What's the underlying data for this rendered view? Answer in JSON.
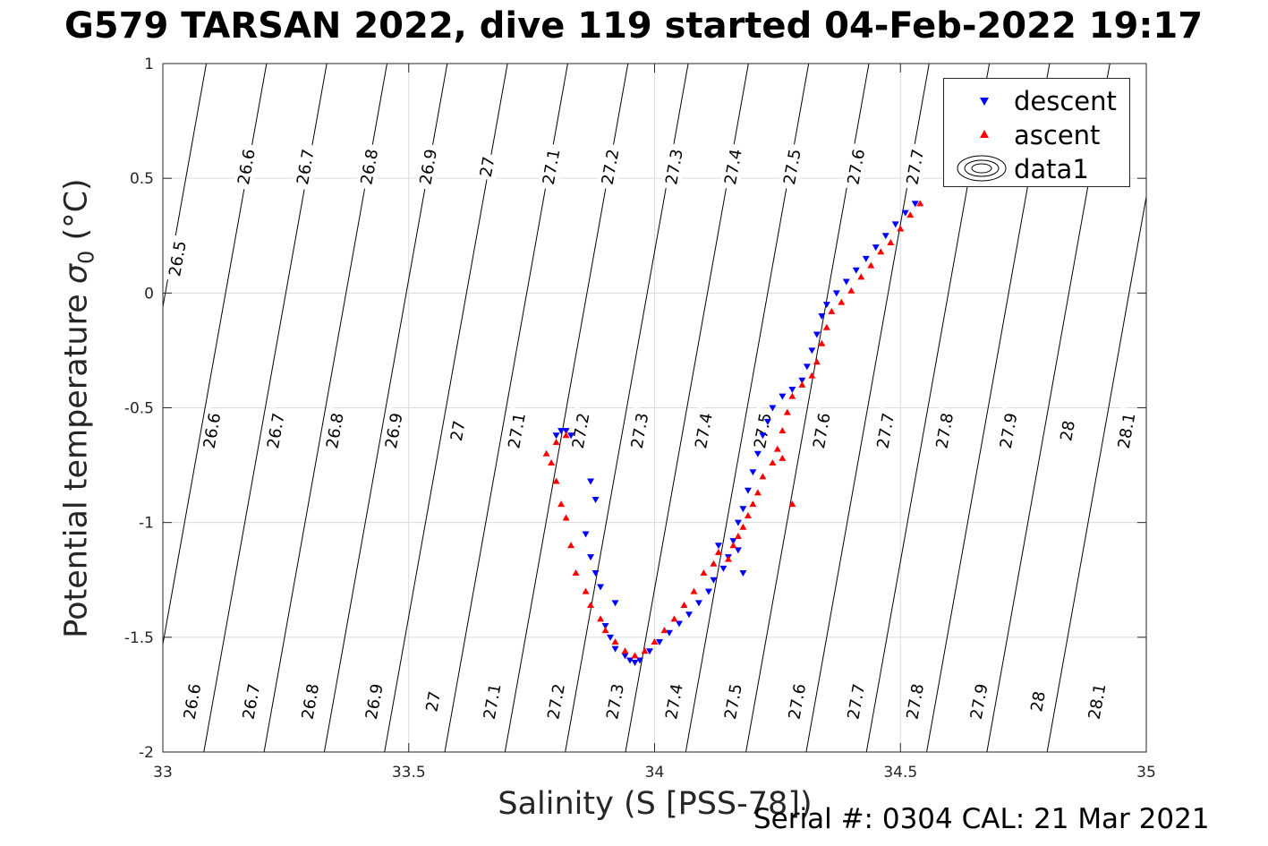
{
  "title": "G579 TARSAN 2022, dive 119 started 04-Feb-2022 19:17",
  "footer": "Serial #: 0304  CAL: 21 Mar 2021",
  "legend": {
    "descent": "descent",
    "ascent": "ascent",
    "data1": "data1"
  },
  "colors": {
    "descent": "#0000ff",
    "ascent": "#ff0000",
    "contour": "#000000",
    "grid": "#dcdcdc",
    "axis": "#262626"
  },
  "chart_data": {
    "type": "scatter",
    "title": "G579 TARSAN 2022, dive 119 started 04-Feb-2022 19:17",
    "xlabel": "Salinity (S [PSS-78])",
    "ylabel": {
      "text": "Potential temperature ",
      "symbol": "σ",
      "sub": "0",
      "unit": " (°C)"
    },
    "xlim": [
      33,
      35
    ],
    "ylim": [
      -2,
      1
    ],
    "xticks": [
      "33",
      "33.5",
      "34",
      "34.5",
      "35"
    ],
    "yticks": [
      "-2",
      "-1.5",
      "-1",
      "-0.5",
      "0",
      "0.5",
      "1"
    ],
    "grid": true,
    "legend_position": "top-right",
    "density_contours": {
      "levels": [
        26.5,
        26.6,
        26.7,
        26.8,
        26.9,
        27,
        27.1,
        27.2,
        27.3,
        27.4,
        27.5,
        27.6,
        27.7,
        27.8,
        27.9,
        28,
        28.1
      ],
      "labels": [
        {
          "text": "26.5",
          "s": 33.03,
          "t": 0.15
        },
        {
          "text": "26.6",
          "s": 33.17,
          "t": 0.55
        },
        {
          "text": "26.7",
          "s": 33.29,
          "t": 0.55
        },
        {
          "text": "26.8",
          "s": 33.42,
          "t": 0.55
        },
        {
          "text": "26.9",
          "s": 33.54,
          "t": 0.55
        },
        {
          "text": "27",
          "s": 33.66,
          "t": 0.55
        },
        {
          "text": "27.1",
          "s": 33.79,
          "t": 0.55
        },
        {
          "text": "27.2",
          "s": 33.91,
          "t": 0.55
        },
        {
          "text": "27.3",
          "s": 34.04,
          "t": 0.55
        },
        {
          "text": "27.4",
          "s": 34.16,
          "t": 0.55
        },
        {
          "text": "27.5",
          "s": 34.28,
          "t": 0.55
        },
        {
          "text": "27.6",
          "s": 34.41,
          "t": 0.55
        },
        {
          "text": "27.7",
          "s": 34.53,
          "t": 0.55
        },
        {
          "text": "26.6",
          "s": 33.1,
          "t": -0.6
        },
        {
          "text": "26.7",
          "s": 33.23,
          "t": -0.6
        },
        {
          "text": "26.8",
          "s": 33.35,
          "t": -0.6
        },
        {
          "text": "26.9",
          "s": 33.47,
          "t": -0.6
        },
        {
          "text": "27",
          "s": 33.6,
          "t": -0.6
        },
        {
          "text": "27.1",
          "s": 33.72,
          "t": -0.6
        },
        {
          "text": "27.2",
          "s": 33.85,
          "t": -0.6
        },
        {
          "text": "27.3",
          "s": 33.97,
          "t": -0.6
        },
        {
          "text": "27.4",
          "s": 34.1,
          "t": -0.6
        },
        {
          "text": "27.5",
          "s": 34.22,
          "t": -0.6
        },
        {
          "text": "27.6",
          "s": 34.34,
          "t": -0.6
        },
        {
          "text": "27.7",
          "s": 34.47,
          "t": -0.6
        },
        {
          "text": "27.8",
          "s": 34.59,
          "t": -0.6
        },
        {
          "text": "27.9",
          "s": 34.72,
          "t": -0.6
        },
        {
          "text": "28",
          "s": 34.84,
          "t": -0.6
        },
        {
          "text": "28.1",
          "s": 34.96,
          "t": -0.6
        },
        {
          "text": "26.6",
          "s": 33.06,
          "t": -1.78
        },
        {
          "text": "26.7",
          "s": 33.18,
          "t": -1.78
        },
        {
          "text": "26.8",
          "s": 33.3,
          "t": -1.78
        },
        {
          "text": "26.9",
          "s": 33.43,
          "t": -1.78
        },
        {
          "text": "27",
          "s": 33.55,
          "t": -1.78
        },
        {
          "text": "27.1",
          "s": 33.67,
          "t": -1.78
        },
        {
          "text": "27.2",
          "s": 33.8,
          "t": -1.78
        },
        {
          "text": "27.3",
          "s": 33.92,
          "t": -1.78
        },
        {
          "text": "27.4",
          "s": 34.04,
          "t": -1.78
        },
        {
          "text": "27.5",
          "s": 34.16,
          "t": -1.78
        },
        {
          "text": "27.6",
          "s": 34.29,
          "t": -1.78
        },
        {
          "text": "27.7",
          "s": 34.41,
          "t": -1.78
        },
        {
          "text": "27.8",
          "s": 34.53,
          "t": -1.78
        },
        {
          "text": "27.9",
          "s": 34.66,
          "t": -1.78
        },
        {
          "text": "28",
          "s": 34.78,
          "t": -1.78
        },
        {
          "text": "28.1",
          "s": 34.9,
          "t": -1.78
        }
      ]
    },
    "series": [
      {
        "name": "descent",
        "marker": "triangle-down",
        "color": "#0000ff",
        "points": [
          [
            34.53,
            0.39
          ],
          [
            34.51,
            0.35
          ],
          [
            34.49,
            0.3
          ],
          [
            34.47,
            0.25
          ],
          [
            34.45,
            0.2
          ],
          [
            34.43,
            0.15
          ],
          [
            34.41,
            0.1
          ],
          [
            34.39,
            0.05
          ],
          [
            34.37,
            0.0
          ],
          [
            34.35,
            -0.05
          ],
          [
            34.34,
            -0.1
          ],
          [
            34.33,
            -0.18
          ],
          [
            34.32,
            -0.25
          ],
          [
            34.31,
            -0.32
          ],
          [
            34.3,
            -0.38
          ],
          [
            34.28,
            -0.42
          ],
          [
            34.26,
            -0.45
          ],
          [
            34.24,
            -0.5
          ],
          [
            34.23,
            -0.56
          ],
          [
            34.22,
            -0.62
          ],
          [
            34.21,
            -0.7
          ],
          [
            34.2,
            -0.78
          ],
          [
            34.19,
            -0.86
          ],
          [
            34.18,
            -0.94
          ],
          [
            34.17,
            -1.0
          ],
          [
            34.16,
            -1.08
          ],
          [
            34.15,
            -1.15
          ],
          [
            34.14,
            -1.2
          ],
          [
            34.12,
            -1.25
          ],
          [
            34.18,
            -1.22
          ],
          [
            34.17,
            -1.12
          ],
          [
            34.13,
            -1.1
          ],
          [
            34.11,
            -1.3
          ],
          [
            34.09,
            -1.35
          ],
          [
            34.07,
            -1.4
          ],
          [
            34.05,
            -1.44
          ],
          [
            34.03,
            -1.48
          ],
          [
            34.01,
            -1.52
          ],
          [
            33.99,
            -1.56
          ],
          [
            33.97,
            -1.6
          ],
          [
            33.96,
            -1.61
          ],
          [
            33.95,
            -1.6
          ],
          [
            33.94,
            -1.58
          ],
          [
            33.92,
            -1.55
          ],
          [
            33.91,
            -1.5
          ],
          [
            33.92,
            -1.35
          ],
          [
            33.9,
            -1.45
          ],
          [
            33.89,
            -1.28
          ],
          [
            33.88,
            -1.22
          ],
          [
            33.87,
            -1.15
          ],
          [
            33.86,
            -1.05
          ],
          [
            33.88,
            -0.9
          ],
          [
            33.87,
            -0.82
          ],
          [
            33.83,
            -0.62
          ],
          [
            33.82,
            -0.6
          ],
          [
            33.81,
            -0.6
          ],
          [
            33.8,
            -0.62
          ]
        ]
      },
      {
        "name": "ascent",
        "marker": "triangle-up",
        "color": "#ff0000",
        "points": [
          [
            34.54,
            0.39
          ],
          [
            34.52,
            0.34
          ],
          [
            34.5,
            0.28
          ],
          [
            34.48,
            0.22
          ],
          [
            34.46,
            0.18
          ],
          [
            34.44,
            0.12
          ],
          [
            34.42,
            0.07
          ],
          [
            34.4,
            0.01
          ],
          [
            34.38,
            -0.04
          ],
          [
            34.36,
            -0.08
          ],
          [
            34.35,
            -0.15
          ],
          [
            34.34,
            -0.22
          ],
          [
            34.33,
            -0.3
          ],
          [
            34.32,
            -0.36
          ],
          [
            34.3,
            -0.4
          ],
          [
            34.28,
            -0.45
          ],
          [
            34.27,
            -0.52
          ],
          [
            34.26,
            -0.6
          ],
          [
            34.25,
            -0.68
          ],
          [
            34.24,
            -0.74
          ],
          [
            34.22,
            -0.8
          ],
          [
            34.21,
            -0.87
          ],
          [
            34.2,
            -0.92
          ],
          [
            34.19,
            -0.97
          ],
          [
            34.18,
            -1.02
          ],
          [
            34.17,
            -1.06
          ],
          [
            34.16,
            -1.1
          ],
          [
            34.15,
            -1.16
          ],
          [
            34.13,
            -1.13
          ],
          [
            34.12,
            -1.18
          ],
          [
            34.1,
            -1.22
          ],
          [
            34.08,
            -1.3
          ],
          [
            34.06,
            -1.36
          ],
          [
            34.04,
            -1.42
          ],
          [
            34.02,
            -1.47
          ],
          [
            34.0,
            -1.52
          ],
          [
            33.98,
            -1.56
          ],
          [
            33.96,
            -1.58
          ],
          [
            33.94,
            -1.56
          ],
          [
            33.92,
            -1.52
          ],
          [
            33.9,
            -1.47
          ],
          [
            33.89,
            -1.42
          ],
          [
            33.87,
            -1.36
          ],
          [
            33.86,
            -1.3
          ],
          [
            33.84,
            -1.22
          ],
          [
            33.83,
            -1.1
          ],
          [
            33.82,
            -0.98
          ],
          [
            33.81,
            -0.92
          ],
          [
            33.8,
            -0.82
          ],
          [
            33.79,
            -0.74
          ],
          [
            33.78,
            -0.7
          ],
          [
            33.8,
            -0.65
          ],
          [
            33.82,
            -0.62
          ],
          [
            34.28,
            -0.92
          ],
          [
            34.26,
            -0.72
          ]
        ]
      },
      {
        "name": "data1",
        "marker": "contour",
        "color": "#000000",
        "points": []
      }
    ]
  }
}
